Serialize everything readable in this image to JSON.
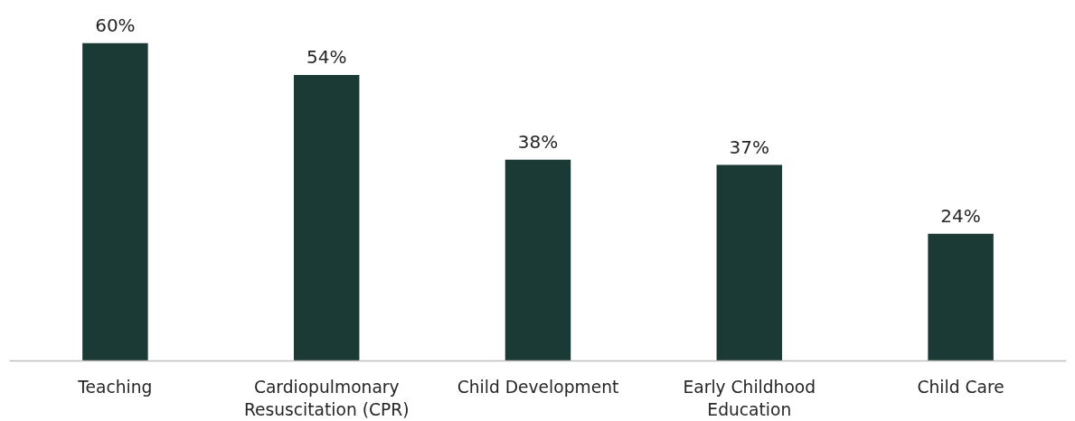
{
  "chart_data": {
    "type": "bar",
    "categories": [
      "Teaching",
      "Cardiopulmonary Resuscitation (CPR)",
      "Child Development",
      "Early Childhood Education",
      "Child Care"
    ],
    "values": [
      60,
      54,
      38,
      37,
      24
    ],
    "value_labels": [
      "60%",
      "54%",
      "38%",
      "37%",
      "24%"
    ],
    "color": "#1c3a35",
    "grid": false
  }
}
